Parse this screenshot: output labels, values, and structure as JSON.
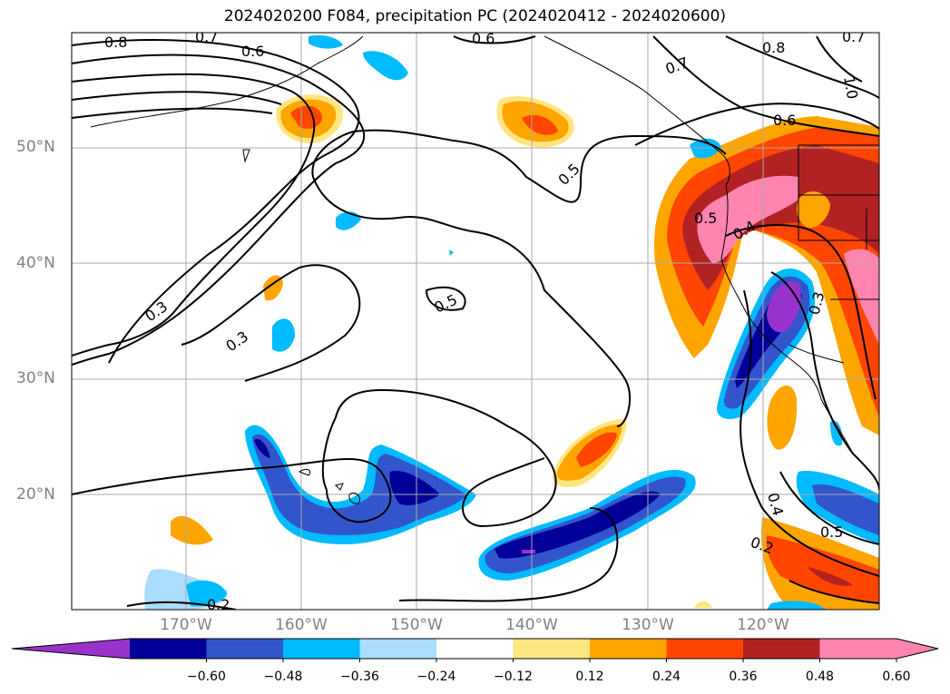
{
  "title": "2024020200 F084, precipitation PC (2024020412 - 2024020600)",
  "lat_labels": [
    "50°N",
    "40°N",
    "30°N",
    "20°N"
  ],
  "lon_labels": [
    "170°W",
    "160°W",
    "150°W",
    "140°W",
    "130°W",
    "120°W"
  ],
  "colorbar": {
    "colors": [
      "#9933cc",
      "#000099",
      "#3355cc",
      "#00bbff",
      "#aaddff",
      "#ffffff",
      "#ffe680",
      "#ffa500",
      "#ff4500",
      "#b22222",
      "#ff85b0",
      "#ff85b0"
    ],
    "tick_labels": [
      "−0.60",
      "−0.48",
      "−0.36",
      "−0.24",
      "−0.12",
      "0.12",
      "0.24",
      "0.36",
      "0.48",
      "0.60"
    ]
  },
  "contour_labels": [
    "0.8",
    "0.7",
    "0.6",
    "0.6",
    "0.7",
    "0.8",
    "0.7",
    "1.0",
    "0.6",
    "0.5",
    "0.5",
    "0.4",
    "0.5",
    "0.3",
    "0.3",
    "0.3",
    "0.4",
    "0.5",
    "0.2",
    "0.2"
  ]
}
